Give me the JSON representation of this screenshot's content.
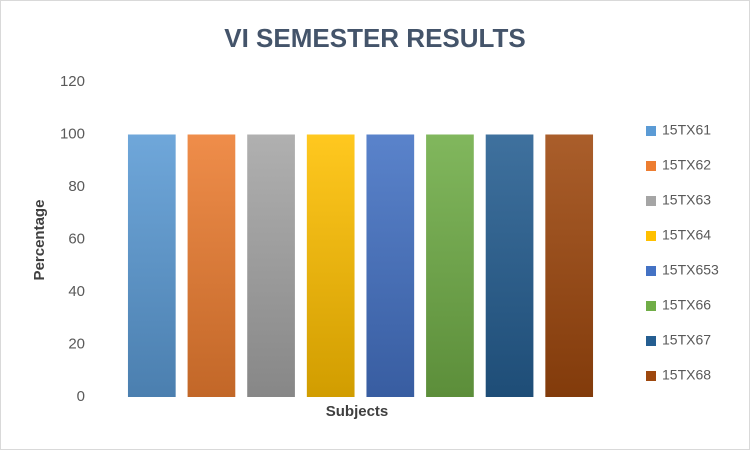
{
  "chart_data": {
    "type": "bar",
    "title": "VI SEMESTER RESULTS",
    "x_label": "Subjects",
    "y_label": "Percentage",
    "categories": [
      null
    ],
    "series": [
      {
        "name": "15TX61",
        "color": "#5b9bd5",
        "values": [
          100
        ]
      },
      {
        "name": "15TX62",
        "color": "#ed7d31",
        "values": [
          100
        ]
      },
      {
        "name": "15TX63",
        "color": "#a5a5a5",
        "values": [
          100
        ]
      },
      {
        "name": "15TX64",
        "color": "#ffc000",
        "values": [
          100
        ]
      },
      {
        "name": "15TX653",
        "color": "#4472c4",
        "values": [
          100
        ]
      },
      {
        "name": "15TX66",
        "color": "#70ad47",
        "values": [
          100
        ]
      },
      {
        "name": "15TX67",
        "color": "#255e91",
        "values": [
          100
        ]
      },
      {
        "name": "15TX68",
        "color": "#9e480e",
        "values": [
          100
        ]
      }
    ],
    "ylim": [
      0,
      120
    ],
    "yticks": [
      0,
      20,
      40,
      60,
      80,
      100,
      120
    ],
    "grid": false,
    "legend": "right"
  }
}
